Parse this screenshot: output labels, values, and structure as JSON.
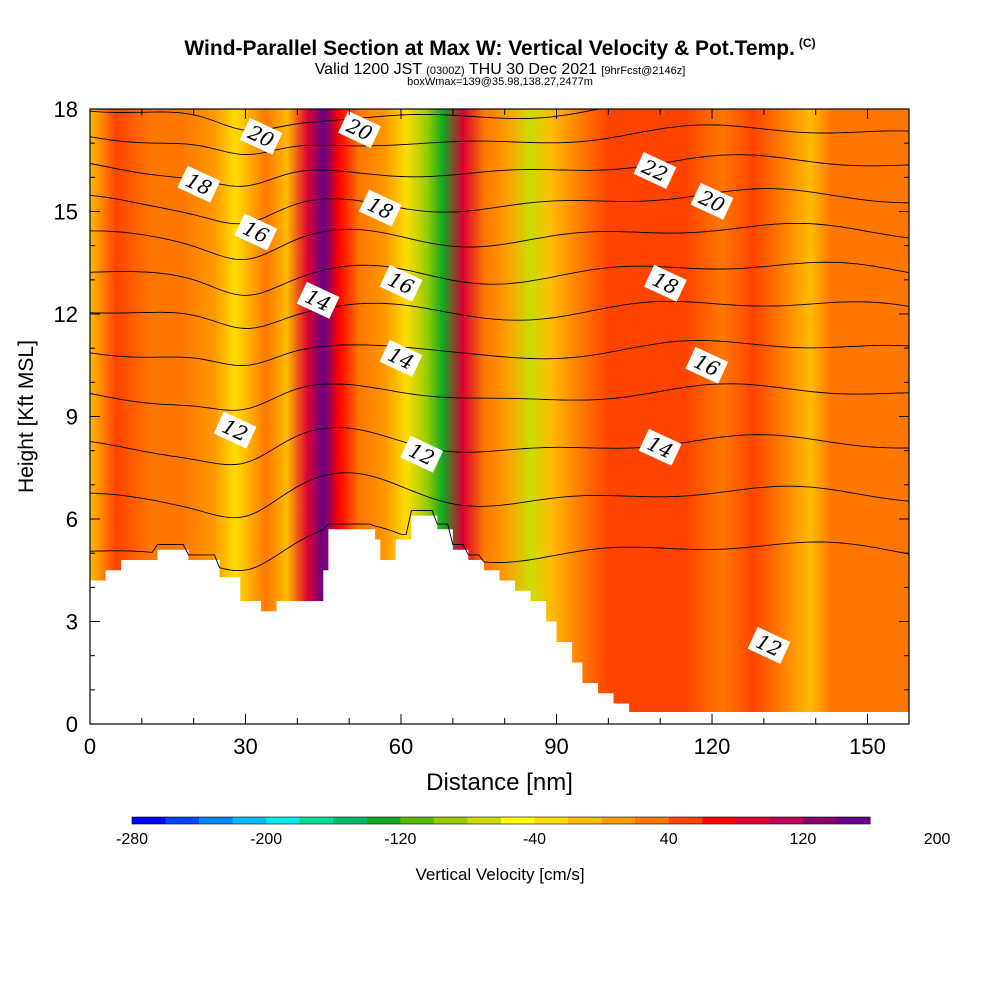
{
  "header": {
    "title": "Wind-Parallel Section at Max W: Vertical Velocity & Pot.Temp.",
    "copyright": "(C)",
    "valid_main": "Valid 1200 JST",
    "valid_utc": "(0300Z)",
    "valid_date": "THU 30 Dec 2021",
    "forecast": "[9hrFcst@2146z]",
    "box_info": "boxWmax=139@35.98,138.27,2477m"
  },
  "chart_data": {
    "type": "heatmap",
    "xlabel": "Distance [nm]",
    "ylabel": "Height [Kft MSL]",
    "xlim": [
      0,
      158
    ],
    "ylim": [
      0,
      18
    ],
    "x_ticks": [
      0,
      30,
      60,
      90,
      120,
      150
    ],
    "y_ticks": [
      0,
      3,
      6,
      9,
      12,
      15,
      18
    ],
    "colorbar": {
      "label": "Vertical Velocity [cm/s]",
      "tick_labels": [
        -280,
        -200,
        -120,
        -40,
        40,
        120,
        200
      ],
      "colors": [
        "#0000ff",
        "#0044ff",
        "#0088ff",
        "#00bbff",
        "#00eeee",
        "#00dd99",
        "#00bb66",
        "#11aa22",
        "#55bb00",
        "#99cc00",
        "#ccdd00",
        "#ffff00",
        "#ffdd00",
        "#ffbb00",
        "#ff9900",
        "#ff7700",
        "#ff4400",
        "#ff0000",
        "#dd0033",
        "#bb0055",
        "#880066",
        "#660088"
      ]
    },
    "velocity_bands": [
      {
        "x": 0,
        "w": -20
      },
      {
        "x": 5,
        "w": 30
      },
      {
        "x": 12,
        "w": 10
      },
      {
        "x": 18,
        "w": 25
      },
      {
        "x": 24,
        "w": 0
      },
      {
        "x": 28,
        "w": -45
      },
      {
        "x": 34,
        "w": 15
      },
      {
        "x": 38,
        "w": -30
      },
      {
        "x": 42,
        "w": 70
      },
      {
        "x": 45,
        "w": 135
      },
      {
        "x": 48,
        "w": 60
      },
      {
        "x": 52,
        "w": 20
      },
      {
        "x": 57,
        "w": -10
      },
      {
        "x": 61,
        "w": -40
      },
      {
        "x": 65,
        "w": -100
      },
      {
        "x": 68,
        "w": -150
      },
      {
        "x": 72,
        "w": 70
      },
      {
        "x": 76,
        "w": 25
      },
      {
        "x": 80,
        "w": 5
      },
      {
        "x": 85,
        "w": -75
      },
      {
        "x": 89,
        "w": -20
      },
      {
        "x": 95,
        "w": 10
      },
      {
        "x": 100,
        "w": 30
      },
      {
        "x": 108,
        "w": 45
      },
      {
        "x": 115,
        "w": 35
      },
      {
        "x": 122,
        "w": 20
      },
      {
        "x": 128,
        "w": 40
      },
      {
        "x": 133,
        "w": 20
      },
      {
        "x": 139,
        "w": -30
      },
      {
        "x": 143,
        "w": 15
      },
      {
        "x": 150,
        "w": 20
      },
      {
        "x": 158,
        "w": 10
      }
    ],
    "terrain": [
      [
        0,
        4.2
      ],
      [
        3,
        4.5
      ],
      [
        6,
        4.8
      ],
      [
        13,
        5.1
      ],
      [
        19,
        4.8
      ],
      [
        25,
        4.3
      ],
      [
        29,
        3.6
      ],
      [
        33,
        3.3
      ],
      [
        36,
        3.6
      ],
      [
        42,
        3.6
      ],
      [
        45,
        4.5
      ],
      [
        46,
        5.7
      ],
      [
        55,
        5.4
      ],
      [
        56,
        4.8
      ],
      [
        59,
        5.4
      ],
      [
        62,
        6.1
      ],
      [
        67,
        5.7
      ],
      [
        70,
        5.1
      ],
      [
        73,
        4.8
      ],
      [
        76,
        4.5
      ],
      [
        79,
        4.2
      ],
      [
        82,
        3.9
      ],
      [
        85,
        3.6
      ],
      [
        88,
        3.0
      ],
      [
        90,
        2.4
      ],
      [
        93,
        1.8
      ],
      [
        95,
        1.2
      ],
      [
        98,
        0.9
      ],
      [
        101,
        0.6
      ],
      [
        104,
        0.35
      ],
      [
        158,
        0.35
      ]
    ],
    "isentropes": [
      {
        "base": 4.9,
        "theta": null
      },
      {
        "base": 6.5,
        "theta": null
      },
      {
        "base": 8.0,
        "theta": "12"
      },
      {
        "base": 9.5,
        "theta": null
      },
      {
        "base": 10.8,
        "theta": "14"
      },
      {
        "base": 12.0,
        "theta": null
      },
      {
        "base": 13.1,
        "theta": "16"
      },
      {
        "base": 14.2,
        "theta": null
      },
      {
        "base": 15.2,
        "theta": "18"
      },
      {
        "base": 16.2,
        "theta": null
      },
      {
        "base": 17.1,
        "theta": "20"
      },
      {
        "base": 17.9,
        "theta": null
      }
    ],
    "contour_labels": [
      {
        "text": "20",
        "x": 33,
        "y": 17.2
      },
      {
        "text": "20",
        "x": 52,
        "y": 17.4
      },
      {
        "text": "18",
        "x": 21,
        "y": 15.8
      },
      {
        "text": "18",
        "x": 56,
        "y": 15.1
      },
      {
        "text": "16",
        "x": 32,
        "y": 14.4
      },
      {
        "text": "16",
        "x": 60,
        "y": 12.9
      },
      {
        "text": "14",
        "x": 44,
        "y": 12.4
      },
      {
        "text": "14",
        "x": 60,
        "y": 10.7
      },
      {
        "text": "12",
        "x": 28,
        "y": 8.6
      },
      {
        "text": "12",
        "x": 64,
        "y": 7.9
      },
      {
        "text": "22",
        "x": 109,
        "y": 16.2
      },
      {
        "text": "20",
        "x": 120,
        "y": 15.3
      },
      {
        "text": "18",
        "x": 111,
        "y": 12.9
      },
      {
        "text": "16",
        "x": 119,
        "y": 10.5
      },
      {
        "text": "14",
        "x": 110,
        "y": 8.1
      },
      {
        "text": "12",
        "x": 131,
        "y": 2.3
      }
    ]
  }
}
